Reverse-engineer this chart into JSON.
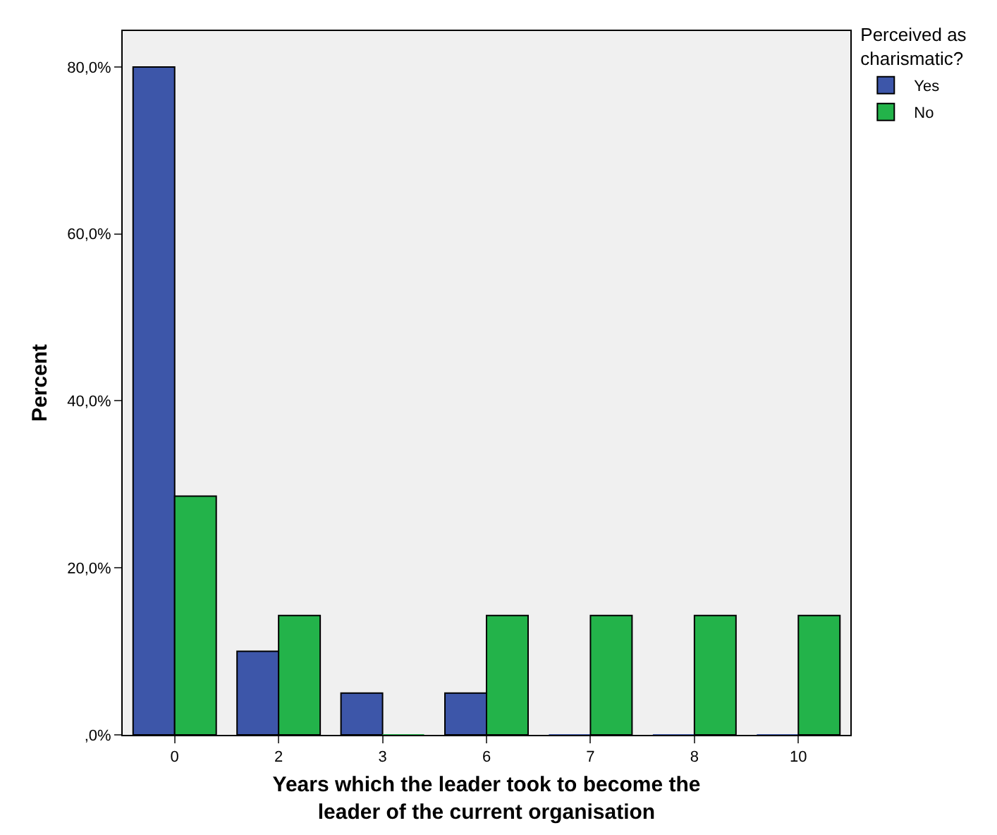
{
  "chart_data": {
    "type": "bar",
    "categories": [
      "0",
      "2",
      "3",
      "6",
      "7",
      "8",
      "10"
    ],
    "series": [
      {
        "name": "Yes",
        "color": "#3d56a9",
        "values": [
          80,
          10,
          5,
          5,
          0,
          0,
          0
        ]
      },
      {
        "name": "No",
        "color": "#23b34a",
        "values": [
          28.6,
          14.3,
          0,
          14.3,
          14.3,
          14.3,
          14.3
        ]
      }
    ],
    "xlabel": "Years which the leader took to become the leader of the current organisation",
    "ylabel": "Percent",
    "legend_title": "Perceived as charismatic?",
    "legend": "top right",
    "grid": false,
    "ylim": [
      0,
      84.3
    ],
    "yticks": [
      {
        "value": 0,
        "label": ",0%"
      },
      {
        "value": 20,
        "label": "20,0%"
      },
      {
        "value": 40,
        "label": "40,0%"
      },
      {
        "value": 60,
        "label": "60,0%"
      },
      {
        "value": 80,
        "label": "80,0%"
      }
    ]
  }
}
